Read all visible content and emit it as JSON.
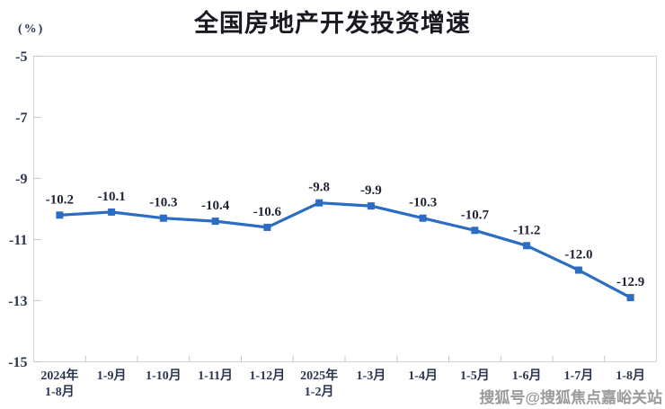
{
  "page": {
    "title": "全国房地产开发投资增速",
    "y_axis_unit": "(%)",
    "watermark": "搜狐号@搜狐焦点嘉峪关站"
  },
  "chart_data": {
    "type": "line",
    "title": "全国房地产开发投资增速",
    "ylabel": "(%)",
    "xlabel": "",
    "categories": [
      [
        "2024年",
        "1-8月"
      ],
      [
        "1-9月"
      ],
      [
        "1-10月"
      ],
      [
        "1-11月"
      ],
      [
        "1-12月"
      ],
      [
        "2025年",
        "1-2月"
      ],
      [
        "1-3月"
      ],
      [
        "1-4月"
      ],
      [
        "1-5月"
      ],
      [
        "1-6月"
      ],
      [
        "1-7月"
      ],
      [
        "1-8月"
      ]
    ],
    "values": [
      -10.2,
      -10.1,
      -10.3,
      -10.4,
      -10.6,
      -9.8,
      -9.9,
      -10.3,
      -10.7,
      -11.2,
      -12.0,
      -12.9
    ],
    "point_labels": [
      "-10.2",
      "-10.1",
      "-10.3",
      "-10.4",
      "-10.6",
      "-9.8",
      "-9.9",
      "-10.3",
      "-10.7",
      "-11.2",
      "-12.0",
      "-12.9"
    ],
    "ylim": [
      -15,
      -5
    ],
    "yticks": [
      -5,
      -7,
      -9,
      -11,
      -13,
      -15
    ],
    "grid": false,
    "legend_position": "none",
    "line_color": "#2b6cc4",
    "marker": "square",
    "axis_border_color": "#d4d4d4",
    "tick_color": "#c4c4c4",
    "axis_label_color": "#2a3550",
    "data_label_color": "#1e2433"
  }
}
